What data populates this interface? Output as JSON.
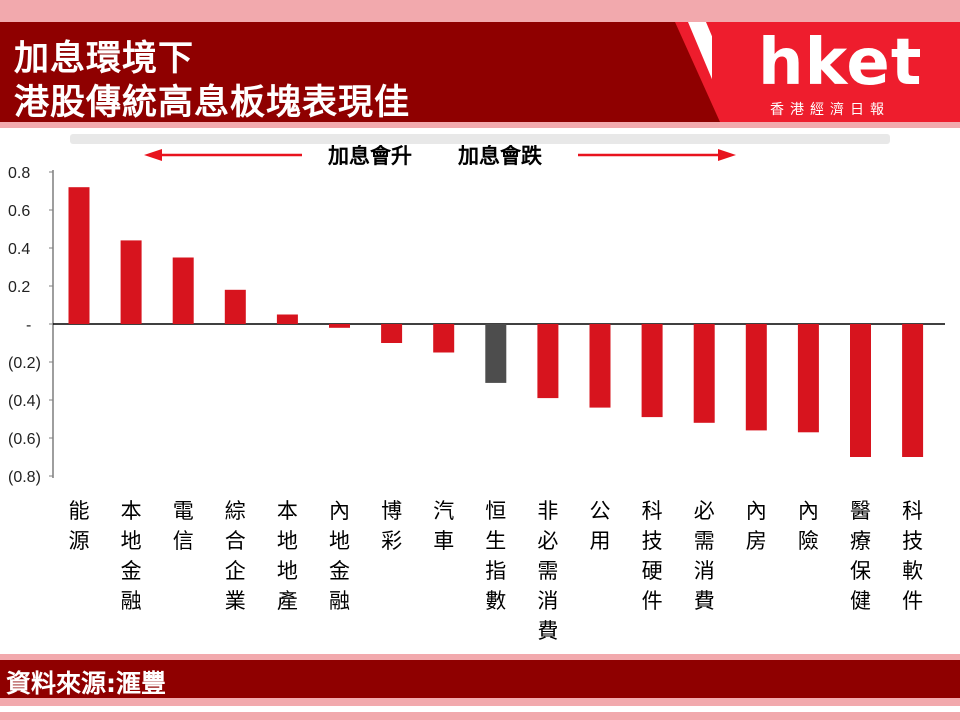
{
  "header": {
    "title_line1": "加息環境下",
    "title_line2": "港股傳統高息板塊表現佳",
    "brand_name": "hket",
    "brand_sub": "香港經濟日報"
  },
  "annotation": {
    "left_label": "加息會升",
    "right_label": "加息會跌"
  },
  "footer": {
    "source": "資料來源:滙豐"
  },
  "colors": {
    "bar": "#d7141e",
    "highlight_bar": "#4d4d4d",
    "header_bg": "#8f0000",
    "brand_red": "#ee1d2d",
    "arrow": "#e8131e"
  },
  "chart_data": {
    "type": "bar",
    "categories": [
      "能源",
      "本地金融",
      "電信",
      "綜合企業",
      "本地地產",
      "內地金融",
      "博彩",
      "汽車",
      "恒生指數",
      "非必需消費",
      "公用",
      "科技硬件",
      "必需消費",
      "內房",
      "內險",
      "醫療保健",
      "科技軟件"
    ],
    "values": [
      0.72,
      0.44,
      0.35,
      0.18,
      0.05,
      -0.02,
      -0.1,
      -0.15,
      -0.31,
      -0.39,
      -0.44,
      -0.49,
      -0.52,
      -0.56,
      -0.57,
      -0.7,
      -0.7
    ],
    "highlight_index": 8,
    "ylim": [
      -0.8,
      0.8
    ],
    "yticks": [
      "0.8",
      "0.6",
      "0.4",
      "0.2",
      "-",
      "(0.2)",
      "(0.4)",
      "(0.6)",
      "(0.8)"
    ],
    "grid": false
  }
}
